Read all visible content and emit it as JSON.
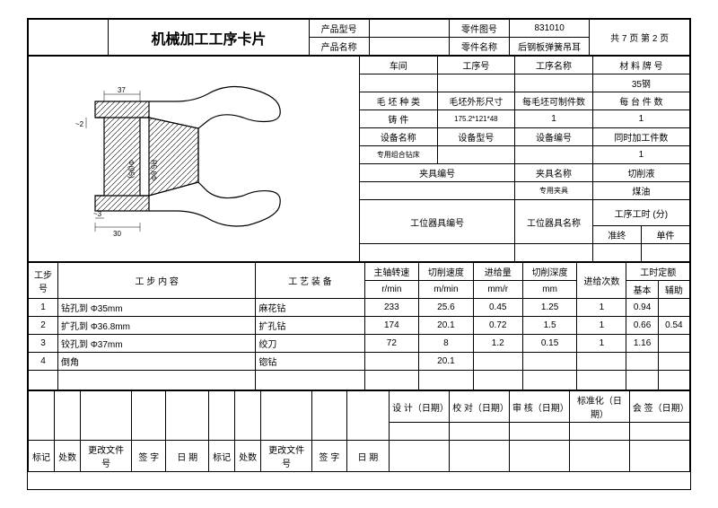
{
  "title": "机械加工工序卡片",
  "header": {
    "prod_type_lbl": "产品型号",
    "prod_type": "",
    "part_draw_lbl": "零件图号",
    "part_draw": "831010",
    "prod_name_lbl": "产品名称",
    "prod_name": "",
    "part_name_lbl": "零件名称",
    "part_name": "后钢板弹簧吊耳",
    "pages": "共  7  页  第  2  页"
  },
  "top_rows": {
    "workshop_lbl": "车间",
    "process_no_lbl": "工序号",
    "process_name_lbl": "工序名称",
    "material_lbl": "材 料 牌 号",
    "workshop": "",
    "process_no": "",
    "process_name": "",
    "material": "35钢",
    "blank_type_lbl": "毛 坯 种 类",
    "blank_dim_lbl": "毛坯外形尺寸",
    "blanks_per_lbl": "每毛坯可制件数",
    "parts_per_lbl": "每 台 件 数",
    "blank_type": "铸  件",
    "blank_dim": "175.2*121*48",
    "blanks_per": "1",
    "parts_per": "1",
    "equip_name_lbl": "设备名称",
    "equip_model_lbl": "设备型号",
    "equip_no_lbl": "设备编号",
    "simul_lbl": "同时加工件数",
    "equip_name": "专用组合钻床",
    "equip_model": "",
    "equip_no": "",
    "simul": "1",
    "fixture_no_lbl": "夹具编号",
    "fixture_name_lbl": "夹具名称",
    "coolant_lbl": "切削液",
    "fixture_no": "",
    "fixture_name": "专用夹具",
    "coolant": "煤油",
    "tool_lbl": "工位器具编号",
    "tool_name_lbl": "工位器具名称",
    "time_lbl": "工序工时 (分)",
    "time_prep_lbl": "准终",
    "time_unit_lbl": "单件"
  },
  "steps_hdr": {
    "step_no": "工步号",
    "content": "工   步   内   容",
    "equip": "工  艺  装  备",
    "spindle": "主轴转速",
    "spindle_u": "r/min",
    "cut_spd": "切削速度",
    "cut_spd_u": "m/min",
    "feed": "进给量",
    "feed_u": "mm/r",
    "depth": "切削深度",
    "depth_u": "mm",
    "passes": "进给次数",
    "quota": "工时定额",
    "basic": "基本",
    "aux": "辅助"
  },
  "steps": [
    {
      "n": "1",
      "content": "钻孔到 Φ35mm",
      "tool": "麻花钻",
      "spd": "233",
      "cut": "25.6",
      "feed": "0.45",
      "depth": "1.25",
      "pass": "1",
      "basic": "0.94",
      "aux": ""
    },
    {
      "n": "2",
      "content": "扩孔到 Φ36.8mm",
      "tool": "扩孔钻",
      "spd": "174",
      "cut": "20.1",
      "feed": "0.72",
      "depth": "1.5",
      "pass": "1",
      "basic": "0.66",
      "aux": "0.54"
    },
    {
      "n": "3",
      "content": "铰孔到 Φ37mm",
      "tool": "绞刀",
      "spd": "72",
      "cut": "8",
      "feed": "1.2",
      "depth": "0.15",
      "pass": "1",
      "basic": "1.16",
      "aux": ""
    },
    {
      "n": "4",
      "content": "倒角",
      "tool": "锪钻",
      "spd": "",
      "cut": "20.1",
      "feed": "",
      "depth": "",
      "pass": "",
      "basic": "",
      "aux": ""
    }
  ],
  "footer": {
    "design": "设 计（日期）",
    "check": "校 对（日期）",
    "review": "审 核（日期）",
    "std": "标准化（日期）",
    "sign": "会 签（日期）",
    "mark": "标记",
    "cnt": "处数",
    "chg": "更改文件号",
    "sig": "签  字",
    "date": "日  期"
  },
  "dims": {
    "d1": "37",
    "d2": "~2",
    "d3": "~3",
    "d4": "30",
    "d5": "Φ(95)",
    "d6": "R5,8Φ",
    "d7": "·"
  },
  "style": {
    "line": "#000"
  }
}
